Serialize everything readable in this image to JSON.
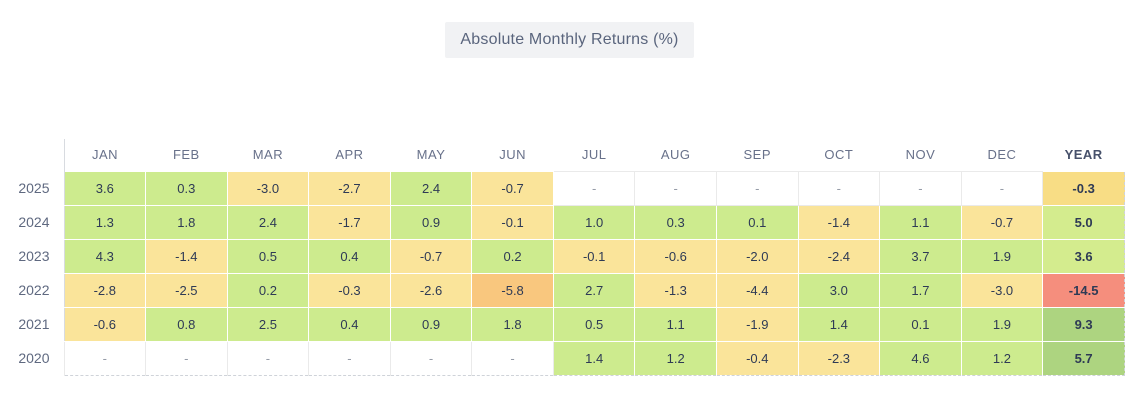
{
  "title": "Absolute Monthly Returns (%)",
  "chart_data": {
    "type": "heatmap",
    "title": "Absolute Monthly Returns (%)",
    "columns": [
      "JAN",
      "FEB",
      "MAR",
      "APR",
      "MAY",
      "JUN",
      "JUL",
      "AUG",
      "SEP",
      "OCT",
      "NOV",
      "DEC",
      "YEAR"
    ],
    "rows": [
      "2025",
      "2024",
      "2023",
      "2022",
      "2021",
      "2020"
    ],
    "values": [
      [
        3.6,
        0.3,
        -3.0,
        -2.7,
        2.4,
        -0.7,
        null,
        null,
        null,
        null,
        null,
        null,
        -0.3
      ],
      [
        1.3,
        1.8,
        2.4,
        -1.7,
        0.9,
        -0.1,
        1.0,
        0.3,
        0.1,
        -1.4,
        1.1,
        -0.7,
        5.0
      ],
      [
        4.3,
        -1.4,
        0.5,
        0.4,
        -0.7,
        0.2,
        -0.1,
        -0.6,
        -2.0,
        -2.4,
        3.7,
        1.9,
        3.6
      ],
      [
        -2.8,
        -2.5,
        0.2,
        -0.3,
        -2.6,
        -5.8,
        2.7,
        -1.3,
        -4.4,
        3.0,
        1.7,
        -3.0,
        -14.5
      ],
      [
        -0.6,
        0.8,
        2.5,
        0.4,
        0.9,
        1.8,
        0.5,
        1.1,
        -1.9,
        1.4,
        0.1,
        1.9,
        9.3
      ],
      [
        null,
        null,
        null,
        null,
        null,
        null,
        1.4,
        1.2,
        -0.4,
        -2.3,
        4.6,
        1.2,
        5.7
      ]
    ],
    "labels": [
      [
        "3.6",
        "0.3",
        "-3.0",
        "-2.7",
        "2.4",
        "-0.7",
        "-",
        "-",
        "-",
        "-",
        "-",
        "-",
        "-0.3"
      ],
      [
        "1.3",
        "1.8",
        "2.4",
        "-1.7",
        "0.9",
        "-0.1",
        "1.0",
        "0.3",
        "0.1",
        "-1.4",
        "1.1",
        "-0.7",
        "5.0"
      ],
      [
        "4.3",
        "-1.4",
        "0.5",
        "0.4",
        "-0.7",
        "0.2",
        "-0.1",
        "-0.6",
        "-2.0",
        "-2.4",
        "3.7",
        "1.9",
        "3.6"
      ],
      [
        "-2.8",
        "-2.5",
        "0.2",
        "-0.3",
        "-2.6",
        "-5.8",
        "2.7",
        "-1.3",
        "-4.4",
        "3.0",
        "1.7",
        "-3.0",
        "-14.5"
      ],
      [
        "-0.6",
        "0.8",
        "2.5",
        "0.4",
        "0.9",
        "1.8",
        "0.5",
        "1.1",
        "-1.9",
        "1.4",
        "0.1",
        "1.9",
        "9.3"
      ],
      [
        "-",
        "-",
        "-",
        "-",
        "-",
        "-",
        "1.4",
        "1.2",
        "-0.4",
        "-2.3",
        "4.6",
        "1.2",
        "5.7"
      ]
    ],
    "cell_colors": [
      [
        "green",
        "green",
        "yellow",
        "yellow",
        "green",
        "yellow",
        "empty",
        "empty",
        "empty",
        "empty",
        "empty",
        "empty",
        "year-yellow"
      ],
      [
        "green",
        "green",
        "green",
        "yellow",
        "green",
        "yellow",
        "green",
        "green",
        "green",
        "yellow",
        "green",
        "yellow",
        "year-green"
      ],
      [
        "green",
        "yellow",
        "green",
        "green",
        "yellow",
        "green",
        "yellow",
        "yellow",
        "yellow",
        "yellow",
        "green",
        "green",
        "year-green"
      ],
      [
        "yellow",
        "yellow",
        "green",
        "yellow",
        "yellow",
        "orange",
        "green",
        "yellow",
        "yellow",
        "green",
        "green",
        "yellow",
        "year-red"
      ],
      [
        "yellow",
        "green",
        "green",
        "green",
        "green",
        "green",
        "green",
        "green",
        "yellow",
        "green",
        "green",
        "green",
        "year-dark-green"
      ],
      [
        "empty",
        "empty",
        "empty",
        "empty",
        "empty",
        "empty",
        "green",
        "green",
        "yellow",
        "yellow",
        "green",
        "green",
        "year-dark-green"
      ]
    ],
    "legend_position": "none",
    "grid": false
  },
  "palette": {
    "green": "#cdeb8e",
    "yellow": "#fae49a",
    "orange": "#f9c77e",
    "red": "#f58e7d",
    "year-yellow": "#f8dd85",
    "year-green": "#d4ec8e",
    "year-dark-green": "#add480",
    "year-red": "#f58e7d",
    "empty": "#ffffff"
  },
  "colors": {
    "title_bg": "#f1f2f4",
    "title_text": "#5a657d",
    "header_text": "#68718a",
    "cell_text": "#2e3a55",
    "row_label_text": "#5f6980",
    "empty_dash_text": "#969ca8",
    "solid_border": "#d8dbe0",
    "dashed_border": "#cfd3d9"
  }
}
